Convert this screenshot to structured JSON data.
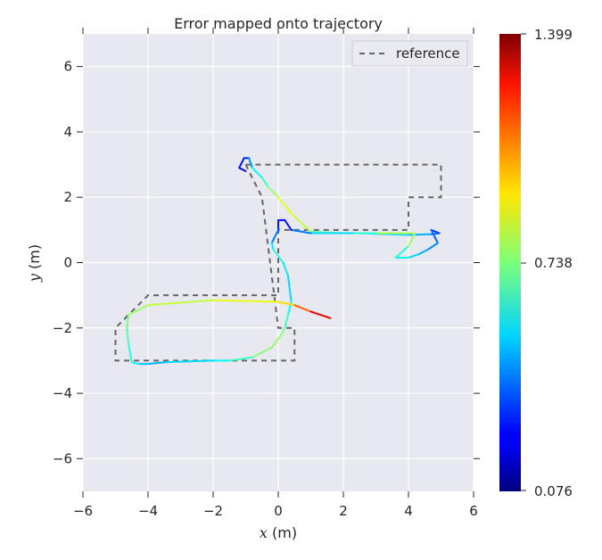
{
  "chart_data": {
    "type": "line",
    "title": "Error mapped onto trajectory",
    "xlabel": "x (m)",
    "ylabel": "y (m)",
    "xlim": [
      -6,
      6
    ],
    "ylim": [
      -7,
      7
    ],
    "xticks": [
      -6,
      -4,
      -2,
      0,
      2,
      4,
      6
    ],
    "yticks": [
      -6,
      -4,
      -2,
      0,
      2,
      4,
      6
    ],
    "xtick_labels": [
      "−6",
      "−4",
      "−2",
      "0",
      "2",
      "4",
      "6"
    ],
    "ytick_labels": [
      "−6",
      "−4",
      "−2",
      "0",
      "2",
      "4",
      "6"
    ],
    "grid": true,
    "legend": {
      "placement": "top-right",
      "entries": [
        "reference"
      ]
    },
    "colormap": "jet",
    "colorbar": {
      "min": 0.076,
      "max": 1.399,
      "ticks": [
        0.076,
        0.738,
        1.399
      ],
      "tick_labels": [
        "0.076",
        "0.738",
        "1.399"
      ]
    },
    "series": [
      {
        "name": "reference",
        "style": "dashed",
        "color": "#666666",
        "x": [
          -1.0,
          4.0,
          5.0,
          5.0,
          4.0,
          4.0,
          0.5,
          0.0,
          0.0,
          -4.0,
          -5.0,
          -5.0,
          0.5,
          0.5,
          0.0,
          -0.5,
          -1.0
        ],
        "y": [
          3.0,
          3.0,
          3.0,
          2.0,
          2.0,
          1.0,
          1.0,
          1.0,
          -1.0,
          -1.0,
          -2.0,
          -3.0,
          -3.0,
          -2.0,
          -2.0,
          2.0,
          3.0
        ]
      },
      {
        "name": "",
        "style": "colored-by-error",
        "x": [
          -1.0,
          -1.2,
          -1.05,
          -0.9,
          -0.8,
          -0.5,
          -0.3,
          0.0,
          0.5,
          1.0,
          2.0,
          2.5,
          3.0,
          4.0,
          4.7,
          4.95,
          4.7,
          4.9,
          4.6,
          4.3,
          4.0,
          3.6,
          4.0,
          4.2,
          3.0,
          2.3,
          1.0,
          0.4,
          0.2,
          0.0,
          0.0,
          -0.2,
          -0.15,
          0.0,
          0.15,
          0.3,
          0.4,
          0.3,
          0.2,
          0.1,
          -0.2,
          -0.8,
          -1.5,
          -2.0,
          -3.5,
          -4.0,
          -4.3,
          -4.5,
          -4.6,
          -4.65,
          -4.6,
          -4.0,
          -2.0,
          0.0,
          0.5,
          1.0,
          1.6
        ],
        "y": [
          2.8,
          2.9,
          3.2,
          3.2,
          2.9,
          2.6,
          2.3,
          2.0,
          1.4,
          0.95,
          0.9,
          0.9,
          0.88,
          0.85,
          0.87,
          0.9,
          1.0,
          0.6,
          0.4,
          0.25,
          0.15,
          0.15,
          0.5,
          0.9,
          0.9,
          0.9,
          0.9,
          1.0,
          1.3,
          1.3,
          1.0,
          0.6,
          0.4,
          0.2,
          0.0,
          -0.4,
          -1.2,
          -1.6,
          -2.0,
          -2.2,
          -2.6,
          -2.9,
          -3.0,
          -3.0,
          -3.05,
          -3.1,
          -3.1,
          -3.05,
          -2.5,
          -2.0,
          -1.6,
          -1.3,
          -1.15,
          -1.2,
          -1.3,
          -1.5,
          -1.7
        ],
        "error": [
          0.2,
          0.25,
          0.3,
          0.3,
          0.55,
          0.6,
          0.7,
          0.85,
          0.9,
          0.75,
          0.65,
          0.6,
          0.55,
          0.5,
          0.45,
          0.3,
          0.35,
          0.4,
          0.45,
          0.5,
          0.55,
          0.6,
          0.65,
          0.9,
          0.7,
          0.55,
          0.5,
          0.3,
          0.25,
          0.25,
          0.3,
          0.5,
          0.6,
          0.65,
          0.6,
          0.5,
          0.55,
          0.6,
          0.7,
          0.75,
          0.8,
          0.7,
          0.6,
          0.55,
          0.5,
          0.45,
          0.55,
          0.6,
          0.65,
          0.7,
          0.75,
          0.8,
          0.85,
          0.9,
          1.0,
          1.2,
          1.3
        ]
      }
    ]
  }
}
